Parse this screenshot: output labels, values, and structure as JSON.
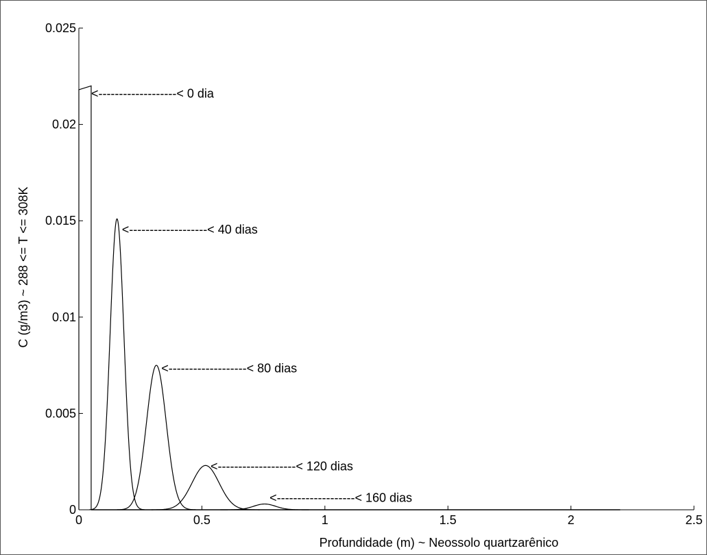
{
  "chart_data": {
    "type": "line",
    "xlabel": "Profundidade (m)  ~  Neossolo quartzarênico",
    "ylabel": "C (g/m3)  ~  288 <= T <= 308K",
    "xlim": [
      0,
      2.5
    ],
    "ylim": [
      0,
      0.025
    ],
    "grid": false,
    "x_ticks": [
      0,
      0.5,
      1,
      1.5,
      2,
      2.5
    ],
    "x_tick_labels": [
      "0",
      "0.5",
      "1",
      "1.5",
      "2",
      "2.5"
    ],
    "y_ticks": [
      0,
      0.005,
      0.01,
      0.015,
      0.02,
      0.025
    ],
    "y_tick_labels": [
      "0",
      "0.005",
      "0.01",
      "0.015",
      "0.02",
      "0.025"
    ],
    "series": [
      {
        "name": "0 dia",
        "shape": "rectangular",
        "x_start": 0,
        "x_end": 0.05,
        "y_start": 0.0218,
        "y_end": 0.022
      },
      {
        "name": "40 dias",
        "shape": "peak",
        "center": 0.155,
        "peak": 0.0151,
        "width": 0.028
      },
      {
        "name": "80 dias",
        "shape": "peak",
        "center": 0.315,
        "peak": 0.0075,
        "width": 0.04
      },
      {
        "name": "120 dias",
        "shape": "peak",
        "center": 0.515,
        "peak": 0.0023,
        "width": 0.055
      },
      {
        "name": "160 dias",
        "shape": "peak",
        "center": 0.755,
        "peak": 0.0003,
        "width": 0.045
      }
    ],
    "baseline_x_end": 2.2,
    "annotations": [
      {
        "text": "< 0 dia",
        "x": 0.05,
        "y": 0.0216,
        "to_x": 0.64
      },
      {
        "text": "< 40 dias",
        "x": 0.175,
        "y": 0.01455,
        "to_x": 0.76
      },
      {
        "text": "< 80 dias",
        "x": 0.335,
        "y": 0.00735,
        "to_x": 0.92
      },
      {
        "text": "< 120 dias",
        "x": 0.535,
        "y": 0.00225,
        "to_x": 1.14
      },
      {
        "text": "< 160 dias",
        "x": 0.775,
        "y": 0.00062,
        "to_x": 1.38
      }
    ]
  }
}
